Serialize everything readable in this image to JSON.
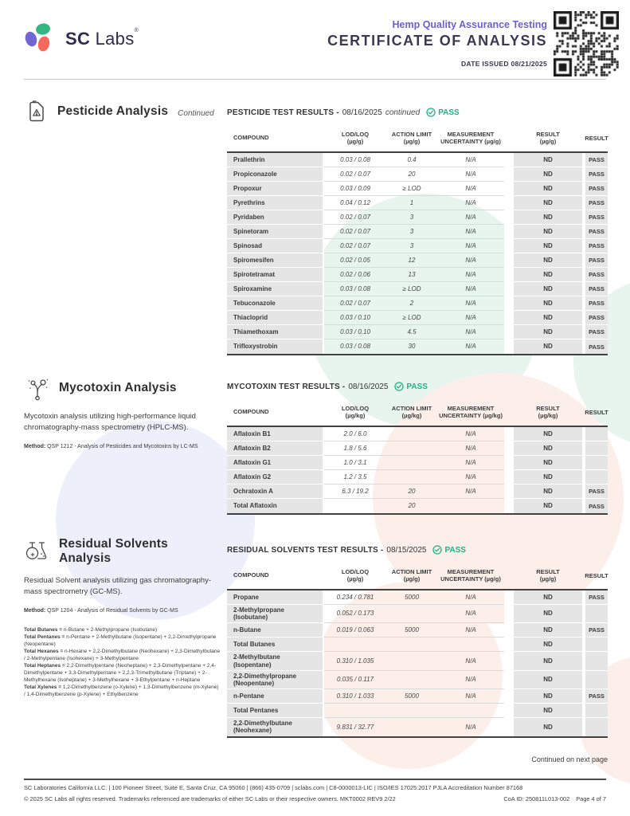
{
  "header": {
    "brand": {
      "sc": "SC",
      "labs": "Labs",
      "reg": "®"
    },
    "subtitle": "Hemp Quality Assurance Testing",
    "title": "CERTIFICATE OF ANALYSIS",
    "date_issued": "DATE ISSUED 08/21/2025"
  },
  "sections": {
    "pesticide": {
      "title": "Pesticide Analysis",
      "title_suffix": "Continued",
      "results": {
        "label": "PESTICIDE TEST RESULTS -",
        "date": "08/16/2025",
        "suffix": "continued",
        "pass": "PASS"
      },
      "table": {
        "headers": [
          "COMPOUND",
          "LOD/LOQ\n(µg/g)",
          "ACTION LIMIT\n(µg/g)",
          "MEASUREMENT\nUNCERTAINTY (µg/g)",
          "RESULT\n(µg/g)",
          "RESULT"
        ],
        "rows": [
          [
            "Prallethrin",
            "0.03 / 0.08",
            "0.4",
            "N/A",
            "ND",
            "PASS"
          ],
          [
            "Propiconazole",
            "0.02 / 0.07",
            "20",
            "N/A",
            "ND",
            "PASS"
          ],
          [
            "Propoxur",
            "0.03 / 0.09",
            "≥ LOD",
            "N/A",
            "ND",
            "PASS"
          ],
          [
            "Pyrethrins",
            "0.04 / 0.12",
            "1",
            "N/A",
            "ND",
            "PASS"
          ],
          [
            "Pyridaben",
            "0.02 / 0.07",
            "3",
            "N/A",
            "ND",
            "PASS"
          ],
          [
            "Spinetoram",
            "0.02 / 0.07",
            "3",
            "N/A",
            "ND",
            "PASS"
          ],
          [
            "Spinosad",
            "0.02 / 0.07",
            "3",
            "N/A",
            "ND",
            "PASS"
          ],
          [
            "Spiromesifen",
            "0.02 / 0.05",
            "12",
            "N/A",
            "ND",
            "PASS"
          ],
          [
            "Spirotetramat",
            "0.02 / 0.06",
            "13",
            "N/A",
            "ND",
            "PASS"
          ],
          [
            "Spiroxamine",
            "0.03 / 0.08",
            "≥ LOD",
            "N/A",
            "ND",
            "PASS"
          ],
          [
            "Tebuconazole",
            "0.02 / 0.07",
            "2",
            "N/A",
            "ND",
            "PASS"
          ],
          [
            "Thiacloprid",
            "0.03 / 0.10",
            "≥ LOD",
            "N/A",
            "ND",
            "PASS"
          ],
          [
            "Thiamethoxam",
            "0.03 / 0.10",
            "4.5",
            "N/A",
            "ND",
            "PASS"
          ],
          [
            "Trifloxystrobin",
            "0.03 / 0.08",
            "30",
            "N/A",
            "ND",
            "PASS"
          ]
        ]
      }
    },
    "mycotoxin": {
      "title": "Mycotoxin Analysis",
      "description": "Mycotoxin analysis utilizing high-performance liquid chromatography-mass spectrometry (HPLC-MS).",
      "method_label": "Method:",
      "method_text": " QSP 1212 - Analysis of Pesticides and Mycotoxins by LC-MS",
      "results": {
        "label": "MYCOTOXIN TEST RESULTS -",
        "date": "08/16/2025",
        "suffix": "",
        "pass": "PASS"
      },
      "table": {
        "headers": [
          "COMPOUND",
          "LOD/LOQ\n(µg/kg)",
          "ACTION LIMIT\n(µg/kg)",
          "MEASUREMENT\nUNCERTAINTY (µg/kg)",
          "RESULT\n(µg/kg)",
          "RESULT"
        ],
        "rows": [
          [
            "Aflatoxin B1",
            "2.0 / 6.0",
            "",
            "N/A",
            "ND",
            ""
          ],
          [
            "Aflatoxin B2",
            "1.8 / 5.6",
            "",
            "N/A",
            "ND",
            ""
          ],
          [
            "Aflatoxin G1",
            "1.0 / 3.1",
            "",
            "N/A",
            "ND",
            ""
          ],
          [
            "Aflatoxin G2",
            "1.2 / 3.5",
            "",
            "N/A",
            "ND",
            ""
          ],
          [
            "Ochratoxin A",
            "6.3 / 19.2",
            "20",
            "N/A",
            "ND",
            "PASS"
          ],
          [
            "Total Aflatoxin",
            "",
            "20",
            "",
            "ND",
            "PASS"
          ]
        ]
      }
    },
    "solvents": {
      "title": "Residual Solvents Analysis",
      "description": "Residual Solvent analysis utilizing gas chromatography-mass spectrometry (GC-MS).",
      "method_label": "Method:",
      "method_text": " QSP 1204 - Analysis of Residual Solvents by GC-MS",
      "definitions": [
        {
          "b": "Total Butanes =",
          "t": " n-Butane + 2-Methylpropane (Isobutane)"
        },
        {
          "b": "Total Pentanes =",
          "t": " n-Pentane + 2-Methylbutane (Isopentane) + 2,2-Dimethylpropane (Neopentane)"
        },
        {
          "b": "Total Hexanes =",
          "t": " n-Hexane + 2,2-Dimethylbutane (Neohexane) + 2,3-Dimethylbutane / 2-Methylpentane (Isohexane) + 3-Methylpentane"
        },
        {
          "b": "Total Heptanes =",
          "t": " 2,2-Dimethylpentane (Neoheptane) + 2,3-Dimethylpentane + 2,4-Dimethylpentane + 3,3-Dimethylpentane + 2,2,3-Trimethylbutane (Triptane) + 2-Methylhexane (Isoheptane) + 3-Methylhexane + 3-Ethylpentane + n-Heptane"
        },
        {
          "b": "Total Xylenes =",
          "t": " 1,2-Dimethylbenzene (o-Xylene) + 1,3-Dimethylbenzene (m-Xylene) / 1,4-Dimethylbenzene (p-Xylene) + Ethylbenzene"
        }
      ],
      "results": {
        "label": "RESIDUAL SOLVENTS TEST RESULTS -",
        "date": "08/15/2025",
        "suffix": "",
        "pass": "PASS"
      },
      "table": {
        "headers": [
          "COMPOUND",
          "LOD/LOQ\n(µg/g)",
          "ACTION LIMIT\n(µg/g)",
          "MEASUREMENT\nUNCERTAINTY (µg/g)",
          "RESULT\n(µg/g)",
          "RESULT"
        ],
        "rows": [
          [
            "Propane",
            "0.234 / 0.781",
            "5000",
            "N/A",
            "ND",
            "PASS"
          ],
          [
            "2-Methylpropane (Isobutane)",
            "0.052 / 0.173",
            "",
            "N/A",
            "ND",
            ""
          ],
          [
            "n-Butane",
            "0.019 / 0.063",
            "5000",
            "N/A",
            "ND",
            "PASS"
          ],
          [
            "Total Butanes",
            "",
            "",
            "",
            "ND",
            ""
          ],
          [
            "2-Methylbutane (Isopentane)",
            "0.310 / 1.035",
            "",
            "N/A",
            "ND",
            ""
          ],
          [
            "2,2-Dimethylpropane (Neopentane)",
            "0.035 / 0.117",
            "",
            "N/A",
            "ND",
            ""
          ],
          [
            "n-Pentane",
            "0.310 / 1.033",
            "5000",
            "N/A",
            "ND",
            "PASS"
          ],
          [
            "Total Pentanes",
            "",
            "",
            "",
            "ND",
            ""
          ],
          [
            "2,2-Dimethylbutane (Neohexane)",
            "9.831 / 32.77",
            "",
            "N/A",
            "ND",
            ""
          ]
        ]
      }
    }
  },
  "continued_note": "Continued on next page",
  "footer": {
    "line1": "SC Laboratories California LLC. | 100 Pioneer Street, Suite E, Santa Cruz, CA 95060 | (866) 435-0709 | sclabs.com | C8-0000013-LIC | ISO/IES 17025:2017 PJLA Accreditation Number 87168",
    "line2": "© 2025 SC Labs all rights reserved. Trademarks referenced are trademarks of either SC Labs or their respective owners. MKT0002 REV9 2/22",
    "coa_id": "CoA ID: 250811L013-002",
    "page": "Page 4 of 7"
  },
  "colors": {
    "accent_purple": "#6c60d1",
    "pass_green": "#1db584",
    "logo_green": "#35b57f",
    "logo_purple": "#7166d2",
    "logo_coral": "#f4695c",
    "table_gray": "#e5e5e5"
  }
}
